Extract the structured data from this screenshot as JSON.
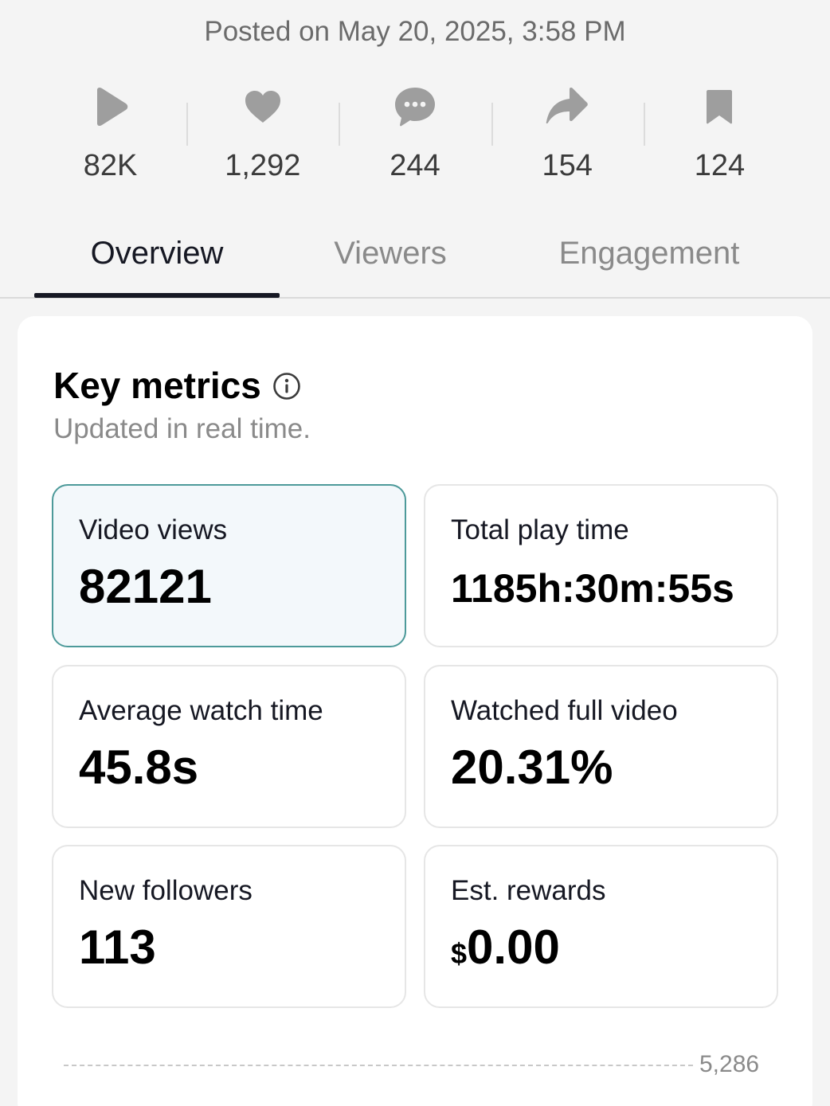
{
  "posted": "Posted on May 20, 2025, 3:58 PM",
  "stats": [
    {
      "icon": "play-icon",
      "value": "82K"
    },
    {
      "icon": "heart-icon",
      "value": "1,292"
    },
    {
      "icon": "comment-icon",
      "value": "244"
    },
    {
      "icon": "share-icon",
      "value": "154"
    },
    {
      "icon": "bookmark-icon",
      "value": "124"
    }
  ],
  "tabs": [
    "Overview",
    "Viewers",
    "Engagement"
  ],
  "active_tab": "Overview",
  "key_metrics": {
    "title": "Key metrics",
    "subtitle": "Updated in real time.",
    "items": [
      {
        "label": "Video views",
        "value": "82121"
      },
      {
        "label": "Total play time",
        "value": "1185h:30m:55s"
      },
      {
        "label": "Average watch time",
        "value": "45.8s"
      },
      {
        "label": "Watched full video",
        "value": "20.31%"
      },
      {
        "label": "New followers",
        "value": "113"
      },
      {
        "label": "Est. rewards",
        "currency": "$",
        "value": "0.00"
      }
    ]
  },
  "chart": {
    "tick_label": "5,286"
  },
  "colors": {
    "icon_gray": "#9e9e9e",
    "text_dark": "#161823",
    "selected_border": "#4d9a9a",
    "selected_bg": "#f3f8fb"
  }
}
